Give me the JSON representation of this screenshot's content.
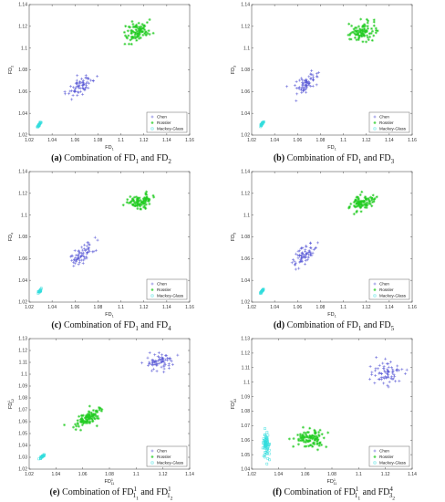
{
  "chart_data": [
    {
      "type": "scatter",
      "label": "(a)",
      "caption_prefix": "Combination of",
      "caption_and": "and",
      "caption_terms": [
        {
          "base": "FD",
          "sub": "1",
          "sup": ""
        },
        {
          "base": "FD",
          "sub": "2",
          "sup": ""
        }
      ],
      "xlabel": {
        "base": "FD",
        "sub": "1",
        "sup": ""
      },
      "ylabel": {
        "base": "FD",
        "sub": "2",
        "sup": ""
      },
      "xlim": [
        1.02,
        1.16
      ],
      "ylim": [
        1.02,
        1.14
      ],
      "xticks": [
        "1.02",
        "1.04",
        "1.06",
        "1.08",
        "1.1",
        "1.12",
        "1.14",
        "1.16"
      ],
      "yticks": [
        "1.02",
        "1.04",
        "1.06",
        "1.08",
        "1.1",
        "1.12",
        "1.14"
      ],
      "legend_position": "lower-right",
      "series": [
        {
          "name": "Chen",
          "marker": "plus",
          "color": "#5a5ad6",
          "cx": 1.065,
          "cy": 1.065,
          "sx": 0.0055,
          "sy": 0.0055,
          "n": 70,
          "corr": 0.7
        },
        {
          "name": "Rossler",
          "marker": "star",
          "color": "#22cc22",
          "cx": 1.115,
          "cy": 1.115,
          "sx": 0.0055,
          "sy": 0.0045,
          "n": 90,
          "corr": 0.3
        },
        {
          "name": "Mackey-Glass",
          "marker": "square",
          "color": "#33dddd",
          "cx": 1.029,
          "cy": 1.03,
          "sx": 0.0008,
          "sy": 0.0012,
          "n": 25,
          "corr": 0.9
        }
      ]
    },
    {
      "type": "scatter",
      "label": "(b)",
      "caption_prefix": "Combination of",
      "caption_and": "and",
      "caption_terms": [
        {
          "base": "FD",
          "sub": "1",
          "sup": ""
        },
        {
          "base": "FD",
          "sub": "3",
          "sup": ""
        }
      ],
      "xlabel": {
        "base": "FD",
        "sub": "1",
        "sup": ""
      },
      "ylabel": {
        "base": "FD",
        "sub": "3",
        "sup": ""
      },
      "xlim": [
        1.02,
        1.16
      ],
      "ylim": [
        1.02,
        1.14
      ],
      "xticks": [
        "1.02",
        "1.04",
        "1.06",
        "1.08",
        "1.1",
        "1.12",
        "1.14",
        "1.16"
      ],
      "yticks": [
        "1.02",
        "1.04",
        "1.06",
        "1.08",
        "1.1",
        "1.12",
        "1.14"
      ],
      "legend_position": "lower-right",
      "series": [
        {
          "name": "Chen",
          "marker": "plus",
          "color": "#5a5ad6",
          "cx": 1.066,
          "cy": 1.065,
          "sx": 0.0055,
          "sy": 0.0055,
          "n": 70,
          "corr": 0.7
        },
        {
          "name": "Rossler",
          "marker": "star",
          "color": "#22cc22",
          "cx": 1.117,
          "cy": 1.115,
          "sx": 0.0055,
          "sy": 0.0045,
          "n": 90,
          "corr": 0.3
        },
        {
          "name": "Mackey-Glass",
          "marker": "square",
          "color": "#33dddd",
          "cx": 1.029,
          "cy": 1.03,
          "sx": 0.0008,
          "sy": 0.0012,
          "n": 25,
          "corr": 0.9
        }
      ]
    },
    {
      "type": "scatter",
      "label": "(c)",
      "caption_prefix": "Combination of",
      "caption_and": "and",
      "caption_terms": [
        {
          "base": "FD",
          "sub": "1",
          "sup": ""
        },
        {
          "base": "FD",
          "sub": "4",
          "sup": ""
        }
      ],
      "xlabel": {
        "base": "FD",
        "sub": "1",
        "sup": ""
      },
      "ylabel": {
        "base": "FD",
        "sub": "4",
        "sup": ""
      },
      "xlim": [
        1.02,
        1.16
      ],
      "ylim": [
        1.02,
        1.14
      ],
      "xticks": [
        "1.02",
        "1.04",
        "1.06",
        "1.08",
        "1.1",
        "1.12",
        "1.14",
        "1.16"
      ],
      "yticks": [
        "1.02",
        "1.04",
        "1.06",
        "1.08",
        "1.1",
        "1.12",
        "1.14"
      ],
      "legend_position": "lower-right",
      "series": [
        {
          "name": "Chen",
          "marker": "plus",
          "color": "#5a5ad6",
          "cx": 1.066,
          "cy": 1.064,
          "sx": 0.0055,
          "sy": 0.0055,
          "n": 70,
          "corr": 0.7
        },
        {
          "name": "Rossler",
          "marker": "star",
          "color": "#22cc22",
          "cx": 1.117,
          "cy": 1.112,
          "sx": 0.0055,
          "sy": 0.0035,
          "n": 90,
          "corr": 0.3
        },
        {
          "name": "Mackey-Glass",
          "marker": "square",
          "color": "#33dddd",
          "cx": 1.029,
          "cy": 1.03,
          "sx": 0.0008,
          "sy": 0.0012,
          "n": 25,
          "corr": 0.9
        }
      ]
    },
    {
      "type": "scatter",
      "label": "(d)",
      "caption_prefix": "Combination of",
      "caption_and": "and",
      "caption_terms": [
        {
          "base": "FD",
          "sub": "1",
          "sup": ""
        },
        {
          "base": "FD",
          "sub": "5",
          "sup": ""
        }
      ],
      "xlabel": {
        "base": "FD",
        "sub": "1",
        "sup": ""
      },
      "ylabel": {
        "base": "FD",
        "sub": "5",
        "sup": ""
      },
      "xlim": [
        1.02,
        1.16
      ],
      "ylim": [
        1.02,
        1.14
      ],
      "xticks": [
        "1.02",
        "1.04",
        "1.06",
        "1.08",
        "1.1",
        "1.12",
        "1.14",
        "1.16"
      ],
      "yticks": [
        "1.02",
        "1.04",
        "1.06",
        "1.08",
        "1.1",
        "1.12",
        "1.14"
      ],
      "legend_position": "lower-right",
      "series": [
        {
          "name": "Chen",
          "marker": "plus",
          "color": "#5a5ad6",
          "cx": 1.066,
          "cy": 1.063,
          "sx": 0.0055,
          "sy": 0.0055,
          "n": 70,
          "corr": 0.7
        },
        {
          "name": "Rossler",
          "marker": "star",
          "color": "#22cc22",
          "cx": 1.117,
          "cy": 1.112,
          "sx": 0.0055,
          "sy": 0.0035,
          "n": 90,
          "corr": 0.3
        },
        {
          "name": "Mackey-Glass",
          "marker": "square",
          "color": "#33dddd",
          "cx": 1.029,
          "cy": 1.03,
          "sx": 0.0008,
          "sy": 0.0012,
          "n": 25,
          "corr": 0.9
        }
      ]
    },
    {
      "type": "scatter",
      "label": "(e)",
      "caption_prefix": "Combination of",
      "caption_and": "and",
      "caption_terms": [
        {
          "base": "FD",
          "sub": "1",
          "sub2": "1",
          "sup": "1"
        },
        {
          "base": "FD",
          "sub": "1",
          "sub2": "2",
          "sup": "1"
        }
      ],
      "xlabel": {
        "base": "FD",
        "sub": "11",
        "sup": "1"
      },
      "ylabel": {
        "base": "FD",
        "sub": "12",
        "sup": "1"
      },
      "xlim": [
        1.02,
        1.14
      ],
      "ylim": [
        1.02,
        1.13
      ],
      "xticks": [
        "1.02",
        "1.04",
        "1.06",
        "1.08",
        "1.1",
        "1.12",
        "1.14"
      ],
      "yticks": [
        "1.02",
        "1.03",
        "1.04",
        "1.05",
        "1.06",
        "1.07",
        "1.08",
        "1.09",
        "1.1",
        "1.11",
        "1.12",
        "1.13"
      ],
      "legend_position": "lower-right",
      "series": [
        {
          "name": "Chen",
          "marker": "plus",
          "color": "#5a5ad6",
          "cx": 1.118,
          "cy": 1.11,
          "sx": 0.0055,
          "sy": 0.003,
          "n": 70,
          "corr": 0.2
        },
        {
          "name": "Rossler",
          "marker": "star",
          "color": "#22cc22",
          "cx": 1.064,
          "cy": 1.063,
          "sx": 0.005,
          "sy": 0.004,
          "n": 100,
          "corr": 0.7
        },
        {
          "name": "Mackey-Glass",
          "marker": "square",
          "color": "#33dddd",
          "cx": 1.03,
          "cy": 1.031,
          "sx": 0.0008,
          "sy": 0.0009,
          "n": 25,
          "corr": 0.8
        }
      ]
    },
    {
      "type": "scatter",
      "label": "(f)",
      "caption_prefix": "Combination of",
      "caption_and": "and",
      "caption_terms": [
        {
          "base": "FD",
          "sub": "1",
          "sub2": "1",
          "sup": "1"
        },
        {
          "base": "FD",
          "sub": "3",
          "sub2": "2",
          "sup": "4"
        }
      ],
      "xlabel": {
        "base": "FD",
        "sub": "11",
        "sup": "1"
      },
      "ylabel": {
        "base": "FD",
        "sub": "32",
        "sup": "4"
      },
      "xlim": [
        1.02,
        1.14
      ],
      "ylim": [
        1.04,
        1.13
      ],
      "xticks": [
        "1.02",
        "1.04",
        "1.06",
        "1.08",
        "1.1",
        "1.12",
        "1.14"
      ],
      "yticks": [
        "1.04",
        "1.05",
        "1.06",
        "1.07",
        "1.08",
        "1.09",
        "1.1",
        "1.11",
        "1.12",
        "1.13"
      ],
      "legend_position": "lower-right",
      "series": [
        {
          "name": "Chen",
          "marker": "plus",
          "color": "#5a5ad6",
          "cx": 1.12,
          "cy": 1.106,
          "sx": 0.006,
          "sy": 0.004,
          "n": 70,
          "corr": 0.1
        },
        {
          "name": "Rossler",
          "marker": "star",
          "color": "#22cc22",
          "cx": 1.065,
          "cy": 1.061,
          "sx": 0.006,
          "sy": 0.003,
          "n": 100,
          "corr": 0.1
        },
        {
          "name": "Mackey-Glass",
          "marker": "square",
          "color": "#33dddd",
          "cx": 1.031,
          "cy": 1.056,
          "sx": 0.0012,
          "sy": 0.005,
          "n": 70,
          "corr": 0.0
        }
      ]
    }
  ]
}
